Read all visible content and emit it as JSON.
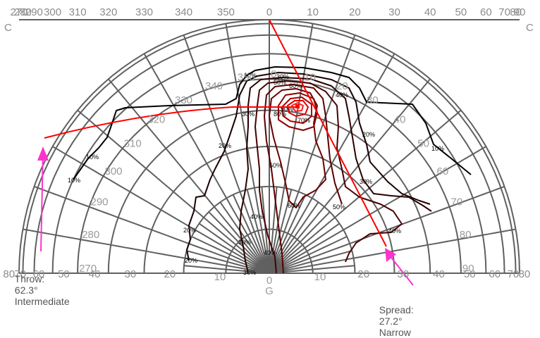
{
  "chart_data": {
    "type": "isocandela",
    "title": "",
    "top_axis": {
      "ticks": [
        "270",
        "280",
        "290",
        "300",
        "310",
        "320",
        "330",
        "340",
        "350",
        "0",
        "10",
        "20",
        "30",
        "40",
        "50",
        "60",
        "70",
        "80",
        "90"
      ],
      "left_end_label": "C",
      "right_end_label": "C"
    },
    "side_axis": {
      "left_ticks": [
        "80",
        "70",
        "60",
        "50",
        "40",
        "30",
        "20"
      ],
      "right_ticks": [
        "80",
        "70",
        "60",
        "50",
        "40",
        "30",
        "20"
      ]
    },
    "bottom_axis": {
      "ticks": [
        "10",
        "0",
        "10"
      ],
      "center_label": "G"
    },
    "inner_c_labels": [
      "270",
      "280",
      "290",
      "300",
      "310",
      "320",
      "330",
      "340",
      "350",
      "0",
      "10",
      "20",
      "30",
      "40",
      "50",
      "60",
      "70",
      "80",
      "90"
    ],
    "contour_levels": [
      "10%",
      "20%",
      "30%",
      "40%",
      "50%",
      "60%",
      "70%",
      "80%",
      "90%"
    ],
    "contour_labels_visible": [
      "10%",
      "10%",
      "10%",
      "10%",
      "20%",
      "20%",
      "20%",
      "20%",
      "30%",
      "30%",
      "30%",
      "30%",
      "30%",
      "40%",
      "40%",
      "40%",
      "40%",
      "50%",
      "50%",
      "50%",
      "60%",
      "60%",
      "70%",
      "80%",
      "90%"
    ],
    "max_point": {
      "c": 10,
      "gamma": 70
    },
    "throw_line": {
      "angle_deg": 62.3,
      "color": "#ff0000"
    },
    "spread_line": {
      "angle_deg": 27.2,
      "color": "#ff0000"
    },
    "colors": {
      "grid": "#606060",
      "outer_contour": "#000000",
      "inner_contour_dark": "#3a0000",
      "inner_contour_bright": "#ff1a1a",
      "arrow": "#ff33cc",
      "text": "#8c8c8c"
    }
  },
  "annotations": {
    "throw": {
      "label": "Throw:",
      "value": "62.3°",
      "class": "Intermediate"
    },
    "spread": {
      "label": "Spread:",
      "value": "27.2°",
      "class": "Narrow"
    }
  }
}
